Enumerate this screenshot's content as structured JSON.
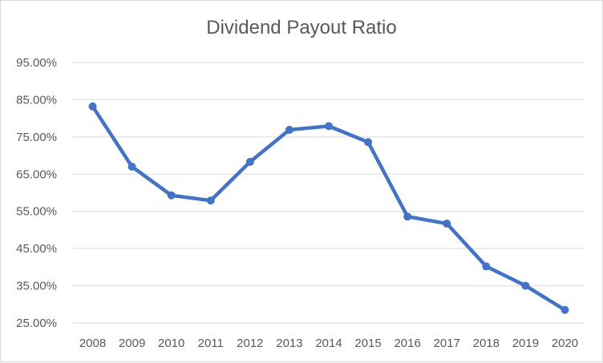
{
  "chart_data": {
    "type": "line",
    "title": "Dividend Payout Ratio",
    "xlabel": "",
    "ylabel": "",
    "categories": [
      "2008",
      "2009",
      "2010",
      "2011",
      "2012",
      "2013",
      "2014",
      "2015",
      "2016",
      "2017",
      "2018",
      "2019",
      "2020"
    ],
    "series": [
      {
        "values": [
          83.2,
          67.0,
          59.3,
          57.9,
          68.3,
          76.9,
          77.9,
          73.6,
          53.6,
          51.7,
          40.2,
          35.0,
          28.5
        ],
        "color": "#4472c4"
      }
    ],
    "ylim": [
      25,
      95
    ],
    "ytick_values": [
      25,
      35,
      45,
      55,
      65,
      75,
      85,
      95
    ],
    "ytick_labels": [
      "25.00%",
      "35.00%",
      "45.00%",
      "55.00%",
      "65.00%",
      "75.00%",
      "85.00%",
      "95.00%"
    ],
    "grid": true,
    "gridline_color": "#d9d9d9",
    "legend": "none"
  }
}
